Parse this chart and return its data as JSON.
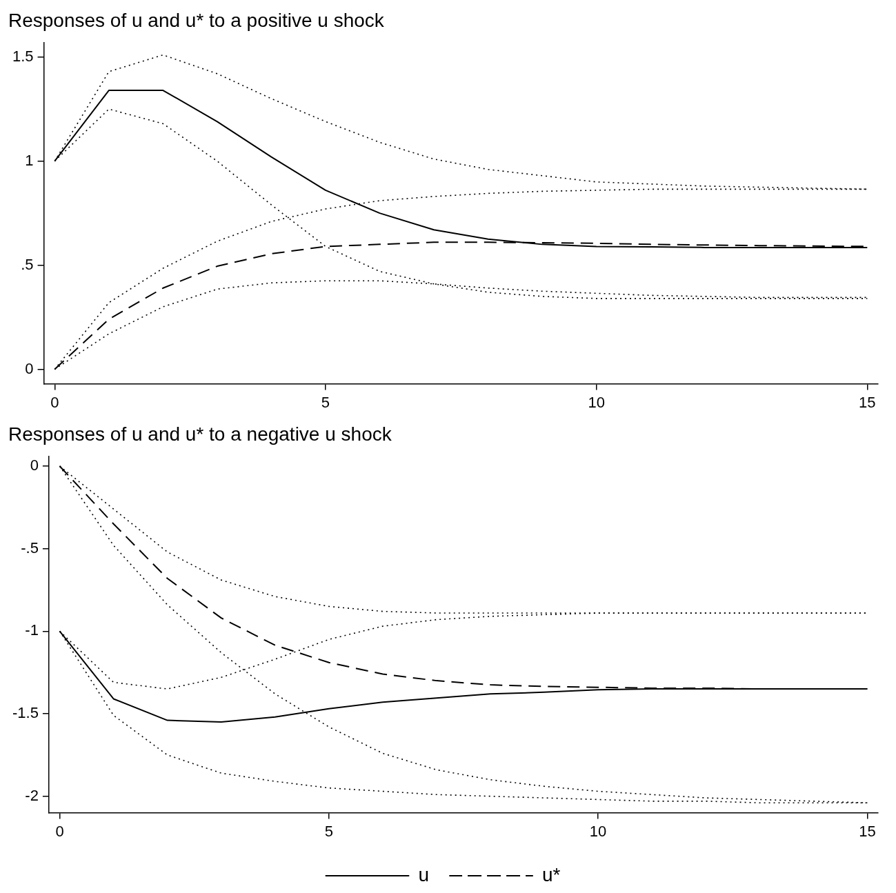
{
  "chart_data": [
    {
      "type": "line",
      "title": "Responses of u and u* to a positive u shock",
      "x": [
        0,
        1,
        2,
        3,
        4,
        5,
        6,
        7,
        8,
        9,
        10,
        11,
        12,
        13,
        14,
        15
      ],
      "xlim": [
        -0.2,
        15.2
      ],
      "xticks": [
        0,
        5,
        10,
        15
      ],
      "ylim": [
        -0.07,
        1.57
      ],
      "yticks": [
        0,
        {
          "value": 0.5,
          "label": ".5"
        },
        1,
        1.5
      ],
      "grid": false,
      "series": [
        {
          "color": "#000000",
          "line_style": "solid",
          "values": [
            1,
            1.34,
            1.34,
            1.19,
            1.02,
            0.86,
            0.75,
            0.67,
            0.625,
            0.6,
            0.59,
            0.588,
            0.585,
            0.585,
            0.585,
            0.585
          ]
        },
        {
          "color": "#000000",
          "line_style": "dotted",
          "values": [
            1,
            1.25,
            1.18,
            1.0,
            0.79,
            0.59,
            0.47,
            0.41,
            0.37,
            0.35,
            0.34,
            0.34,
            0.34,
            0.34,
            0.34,
            0.34
          ]
        },
        {
          "color": "#000000",
          "line_style": "dotted",
          "values": [
            1,
            1.43,
            1.51,
            1.42,
            1.3,
            1.19,
            1.09,
            1.01,
            0.96,
            0.93,
            0.9,
            0.89,
            0.88,
            0.875,
            0.87,
            0.865
          ]
        },
        {
          "color": "#000000",
          "line_style": "dashed",
          "values": [
            0,
            0.24,
            0.39,
            0.495,
            0.555,
            0.59,
            0.6,
            0.61,
            0.61,
            0.608,
            0.605,
            0.6,
            0.597,
            0.594,
            0.592,
            0.59
          ]
        },
        {
          "color": "#000000",
          "line_style": "dotted",
          "values": [
            0,
            0.17,
            0.3,
            0.385,
            0.415,
            0.425,
            0.425,
            0.41,
            0.39,
            0.375,
            0.365,
            0.355,
            0.35,
            0.345,
            0.345,
            0.345
          ]
        },
        {
          "color": "#000000",
          "line_style": "dotted",
          "values": [
            0,
            0.32,
            0.485,
            0.615,
            0.71,
            0.77,
            0.81,
            0.83,
            0.845,
            0.855,
            0.86,
            0.865,
            0.865,
            0.865,
            0.865,
            0.865
          ]
        }
      ]
    },
    {
      "type": "line",
      "title": "Responses of u and u* to a negative u shock",
      "x": [
        0,
        1,
        2,
        3,
        4,
        5,
        6,
        7,
        8,
        9,
        10,
        11,
        12,
        13,
        14,
        15
      ],
      "xlim": [
        -0.2,
        15.2
      ],
      "xticks": [
        0,
        5,
        10,
        15
      ],
      "ylim": [
        -2.1,
        0.06
      ],
      "yticks": [
        {
          "value": -2,
          "label": "-2"
        },
        {
          "value": -1.5,
          "label": "-1.5"
        },
        {
          "value": -1,
          "label": "-1"
        },
        {
          "value": -0.5,
          "label": "-.5"
        },
        0
      ],
      "grid": false,
      "legend": "bottom",
      "series": [
        {
          "name": "u",
          "color": "#000000",
          "line_style": "solid",
          "values": [
            -1,
            -1.41,
            -1.54,
            -1.55,
            -1.52,
            -1.47,
            -1.43,
            -1.405,
            -1.38,
            -1.37,
            -1.355,
            -1.35,
            -1.35,
            -1.35,
            -1.35,
            -1.35
          ]
        },
        {
          "color": "#000000",
          "line_style": "dotted",
          "values": [
            -1,
            -1.51,
            -1.75,
            -1.86,
            -1.91,
            -1.95,
            -1.97,
            -1.99,
            -2.0,
            -2.01,
            -2.02,
            -2.03,
            -2.03,
            -2.04,
            -2.04,
            -2.04
          ]
        },
        {
          "color": "#000000",
          "line_style": "dotted",
          "values": [
            -1,
            -1.31,
            -1.35,
            -1.28,
            -1.17,
            -1.05,
            -0.97,
            -0.93,
            -0.91,
            -0.9,
            -0.89,
            -0.89,
            -0.89,
            -0.89,
            -0.89,
            -0.89
          ]
        },
        {
          "name": "u*",
          "color": "#000000",
          "line_style": "dashed",
          "values": [
            0,
            -0.35,
            -0.68,
            -0.92,
            -1.085,
            -1.19,
            -1.26,
            -1.3,
            -1.325,
            -1.335,
            -1.34,
            -1.345,
            -1.345,
            -1.35,
            -1.35,
            -1.35
          ]
        },
        {
          "color": "#000000",
          "line_style": "dotted",
          "values": [
            0,
            -0.48,
            -0.84,
            -1.13,
            -1.38,
            -1.58,
            -1.74,
            -1.84,
            -1.9,
            -1.94,
            -1.97,
            -1.99,
            -2.01,
            -2.02,
            -2.03,
            -2.04
          ]
        },
        {
          "color": "#000000",
          "line_style": "dotted",
          "values": [
            0,
            -0.26,
            -0.52,
            -0.69,
            -0.79,
            -0.85,
            -0.88,
            -0.89,
            -0.89,
            -0.89,
            -0.89,
            -0.89,
            -0.89,
            -0.89,
            -0.89,
            -0.89
          ]
        }
      ]
    }
  ]
}
